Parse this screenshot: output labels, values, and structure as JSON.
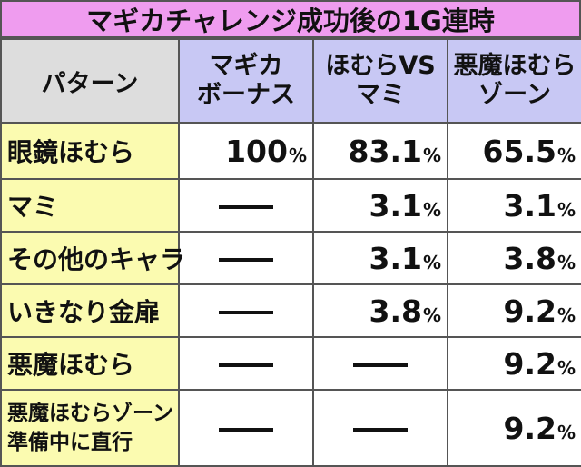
{
  "title": "マギカチャレンジ成功後の1G連時",
  "header": {
    "corner": "パターン",
    "columns": [
      {
        "line1": "マギカ",
        "line2": "ボーナス"
      },
      {
        "line1": "ほむらVS",
        "line2": "マミ"
      },
      {
        "line1": "悪魔ほむら",
        "line2": "ゾーン"
      }
    ]
  },
  "rows": [
    {
      "label1": "眼鏡ほむら",
      "label2": "",
      "values": [
        "100",
        "83.1",
        "65.5"
      ]
    },
    {
      "label1": "マミ",
      "label2": "",
      "values": [
        "",
        "3.1",
        "3.1"
      ]
    },
    {
      "label1": "その他のキャラ",
      "label2": "",
      "values": [
        "",
        "3.1",
        "3.8"
      ]
    },
    {
      "label1": "いきなり金扉",
      "label2": "",
      "values": [
        "",
        "3.8",
        "9.2"
      ]
    },
    {
      "label1": "悪魔ほむら",
      "label2": "",
      "values": [
        "",
        "",
        "9.2"
      ]
    },
    {
      "label1": "悪魔ほむらゾーン",
      "label2": "準備中に直行",
      "values": [
        "",
        "",
        "9.2"
      ]
    }
  ],
  "percent_sign": "%"
}
